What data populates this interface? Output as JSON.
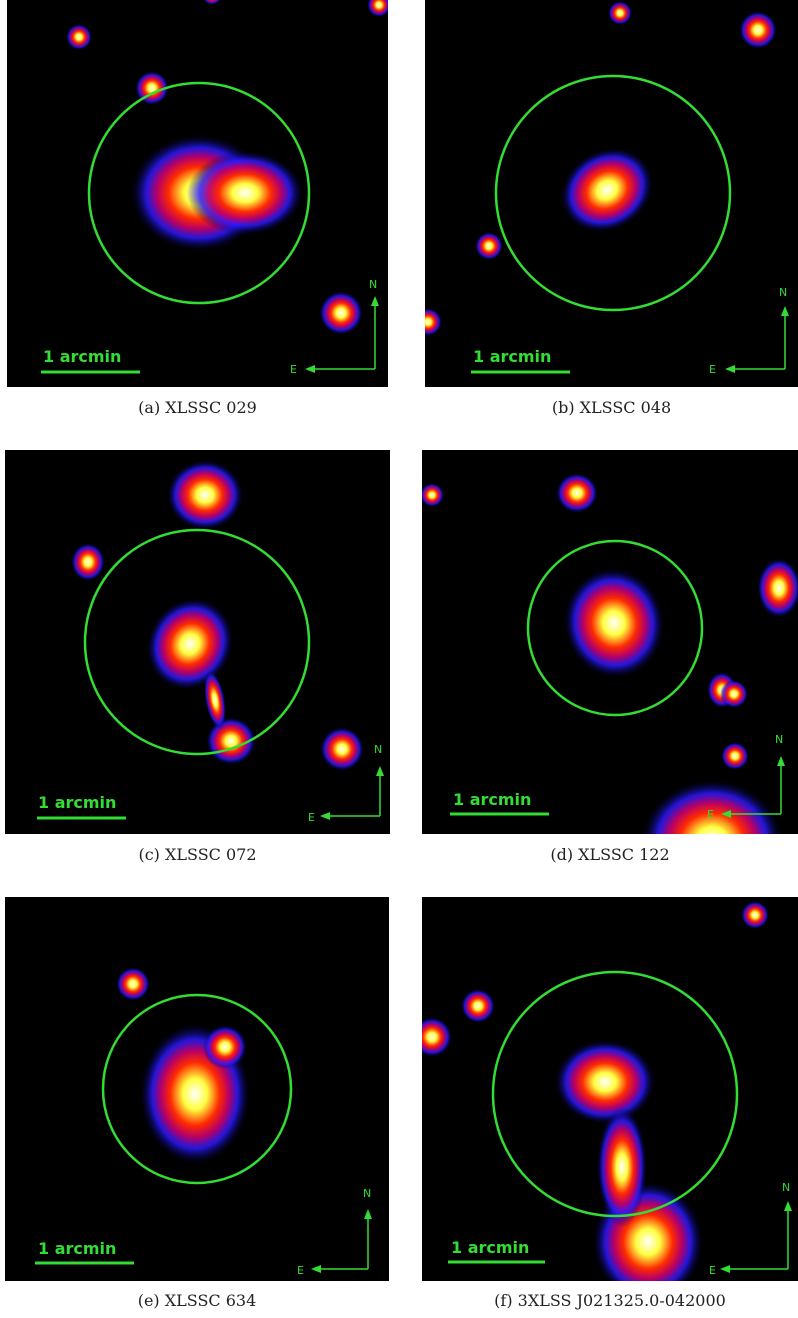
{
  "colors": {
    "marker": "#33dd33",
    "background": "#000000"
  },
  "panels": [
    {
      "caption": "(a) XLSSC 029",
      "scale_label": "1 arcmin",
      "north": "N",
      "east": "E"
    },
    {
      "caption": "(b) XLSSC 048",
      "scale_label": "1 arcmin",
      "north": "N",
      "east": "E"
    },
    {
      "caption": "(c) XLSSC 072",
      "scale_label": "1 arcmin",
      "north": "N",
      "east": "E"
    },
    {
      "caption": "(d) XLSSC 122",
      "scale_label": "1 arcmin",
      "north": "N",
      "east": "E"
    },
    {
      "caption": "(e) XLSSC 634",
      "scale_label": "1 arcmin",
      "north": "N",
      "east": "E"
    },
    {
      "caption": "(f) 3XLSS J021325.0-042000",
      "scale_label": "1 arcmin",
      "north": "N",
      "east": "E"
    }
  ]
}
